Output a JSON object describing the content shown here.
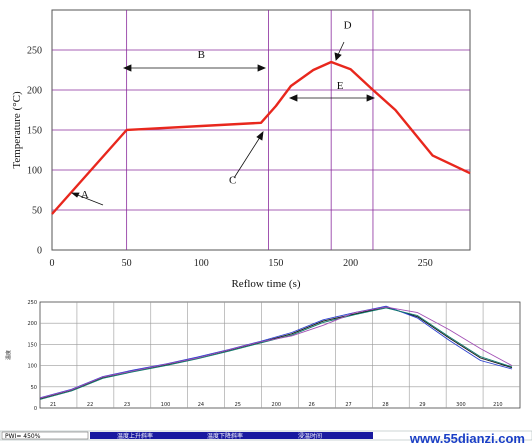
{
  "chart_data": [
    {
      "type": "line",
      "xlabel": "Reflow time (s)",
      "ylabel": "Temperature (°C)",
      "xlim": [
        0,
        280
      ],
      "ylim": [
        0,
        300
      ],
      "xticks": [
        0,
        50,
        100,
        150,
        200,
        250
      ],
      "yticks": [
        0,
        50,
        100,
        150,
        200,
        250
      ],
      "grid": true,
      "series": [
        {
          "color": "#e8271d",
          "x": [
            0,
            50,
            100,
            140,
            150,
            160,
            175,
            187,
            200,
            215,
            230,
            255,
            280
          ],
          "y": [
            45,
            150,
            155,
            159,
            180,
            205,
            225,
            235,
            226,
            200,
            175,
            118,
            96
          ]
        }
      ],
      "vlines": [
        50,
        145,
        187,
        215
      ],
      "annotations": [
        {
          "label": "A",
          "x": 22,
          "y": 70
        },
        {
          "label": "B",
          "x": 100,
          "y": 245
        },
        {
          "label": "C",
          "x": 121,
          "y": 88
        },
        {
          "label": "D",
          "x": 198,
          "y": 282
        },
        {
          "label": "E",
          "x": 193,
          "y": 206
        }
      ]
    },
    {
      "type": "line",
      "ylabel": "温度",
      "ylim": [
        0,
        250
      ],
      "yticks": [
        0,
        50,
        100,
        150,
        200,
        250
      ],
      "xtick_labels": [
        "21",
        "22",
        "23",
        "100",
        "24",
        "25",
        "200",
        "26",
        "27",
        "28",
        "29",
        "300",
        "210"
      ],
      "grid": true,
      "series": [
        {
          "color": "#111111",
          "y": [
            22,
            42,
            72,
            88,
            102,
            118,
            136,
            155,
            175,
            205,
            222,
            238,
            215,
            165,
            118,
            95
          ]
        },
        {
          "color": "#2c3fd0",
          "y": [
            24,
            44,
            74,
            90,
            104,
            120,
            138,
            157,
            178,
            208,
            225,
            240,
            212,
            160,
            112,
            92
          ]
        },
        {
          "color": "#0d7a6c",
          "y": [
            20,
            40,
            70,
            86,
            100,
            116,
            134,
            153,
            172,
            202,
            220,
            236,
            218,
            168,
            121,
            97
          ]
        },
        {
          "color": "#a24fb5",
          "y": [
            23,
            43,
            73,
            88,
            103,
            118,
            137,
            156,
            170,
            195,
            225,
            238,
            225,
            185,
            140,
            100
          ]
        }
      ]
    }
  ],
  "status_bar": {
    "pwi": "PWI= 450%",
    "col1": "温度上升斜率",
    "col2": "温度下降斜率",
    "col3": "浸温时间"
  },
  "watermark": "www.55dianzi.com"
}
